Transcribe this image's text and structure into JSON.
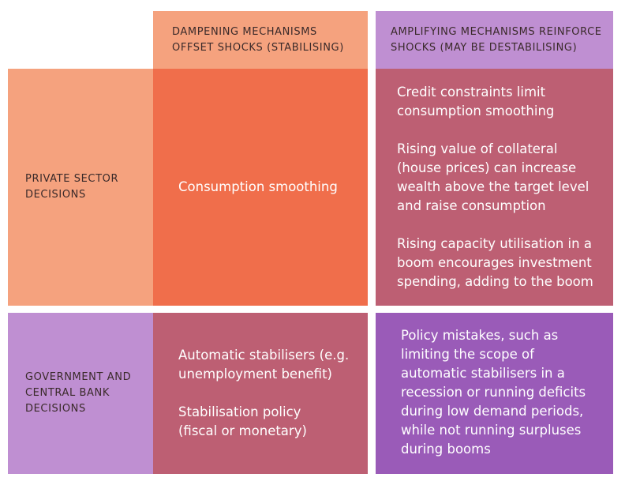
{
  "colors": {
    "header_dampening": "#f5a27e",
    "header_amplifying": "#bf8fd2",
    "row_private": "#f5a27e",
    "row_government": "#bf8fd2",
    "cell_private_dampening": "#f06e4b",
    "cell_private_amplifying": "#bd5f73",
    "cell_government_dampening": "#bd5f73",
    "cell_government_amplifying": "#9a5bb8"
  },
  "headers": {
    "dampening": "DAMPENING MECHANISMS\nOFFSET SHOCKS (STABILISING)",
    "amplifying": "AMPLIFYING MECHANISMS REINFORCE\nSHOCKS (MAY BE DESTABILISING)"
  },
  "rows": {
    "private": "PRIVATE SECTOR\nDECISIONS",
    "government": "GOVERNMENT AND\nCENTRAL BANK\nDECISIONS"
  },
  "cells": {
    "private_dampening": [
      "Consumption smoothing"
    ],
    "private_amplifying": [
      "Credit constraints limit\nconsumption smoothing",
      "Rising value of collateral\n(house prices) can increase\nwealth above the target level\nand raise consumption",
      "Rising capacity utilisation in a\nboom encourages investment\nspending, adding to the boom"
    ],
    "government_dampening": [
      "Automatic stabilisers (e.g.\nunemployment benefit)",
      "Stabilisation policy\n(fiscal or monetary)"
    ],
    "government_amplifying": [
      "Policy mistakes, such as\nlimiting the scope of\nautomatic stabilisers in a\nrecession or running deficits\nduring low demand periods,\nwhile not running surpluses\nduring booms"
    ]
  }
}
